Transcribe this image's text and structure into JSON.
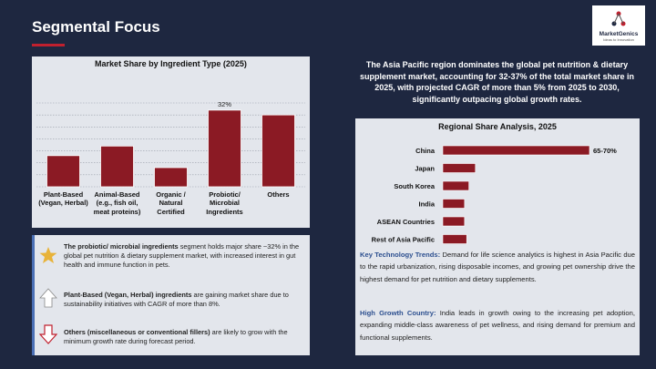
{
  "header": {
    "title": "Segmental Focus",
    "logo": "MarketGenics",
    "logo_tagline": "Ideas to Innovation"
  },
  "chart_data": [
    {
      "type": "bar",
      "title": "Market Share by Ingredient Type (2025)",
      "categories": [
        "Plant-Based\n(Vegan, Herbal)",
        "Animal-Based\n(e.g., fish oil,\nmeat proteins)",
        "Organic /\nNatural\nCertified",
        "Probiotic/\nMicrobial\nIngredients",
        "Others"
      ],
      "values": [
        13,
        17,
        8,
        32,
        30
      ],
      "value_labels": [
        null,
        null,
        null,
        "32%",
        null
      ],
      "color": "#8b1a24",
      "ylim": [
        0,
        35
      ],
      "yticks": [
        0,
        5,
        10,
        15,
        20,
        25,
        30,
        35
      ],
      "grid": true
    },
    {
      "type": "hbar",
      "title": "Regional Share Analysis, 2025",
      "categories": [
        "China",
        "Japan",
        "South Korea",
        "India",
        "ASEAN Countries",
        "Rest of Asia Pacific"
      ],
      "values": [
        67.5,
        15,
        12,
        10,
        10,
        11
      ],
      "value_labels": [
        "65-70%",
        null,
        null,
        null,
        null,
        null
      ],
      "color": "#8b1a24"
    }
  ],
  "summary": "The Asia Pacific region dominates the global pet nutrition & dietary supplement market, accounting for 32-37% of the total market share in 2025, with projected CAGR of more than 5% from 2025 to 2030, significantly outpacing global growth rates.",
  "insights": [
    {
      "bold": "The probiotic/ microbial ingredients",
      "text": "segment holds major share ~32% in the global pet nutrition & dietary supplement market, with increased interest in gut health and immune function in pets."
    },
    {
      "bold": "Plant-Based (Vegan, Herbal) ingredients",
      "text": "are gaining market share due to sustainability initiatives with CAGR of more than 8%."
    },
    {
      "bold": "Others (miscellaneous or conventional fillers)",
      "text": "are likely to grow with the minimum growth rate during forecast period."
    }
  ],
  "trends": [
    {
      "bold": "Key Technology Trends:",
      "text": "Demand for life science analytics is highest in Asia Pacific due to the rapid urbanization, rising disposable incomes, and growing pet ownership drive the highest demand for pet nutrition and dietary supplements."
    },
    {
      "bold": "High Growth Country:",
      "text": "India leads in growth owing to the increasing pet adoption, expanding middle-class awareness of pet wellness, and rising demand for premium and functional supplements."
    }
  ]
}
